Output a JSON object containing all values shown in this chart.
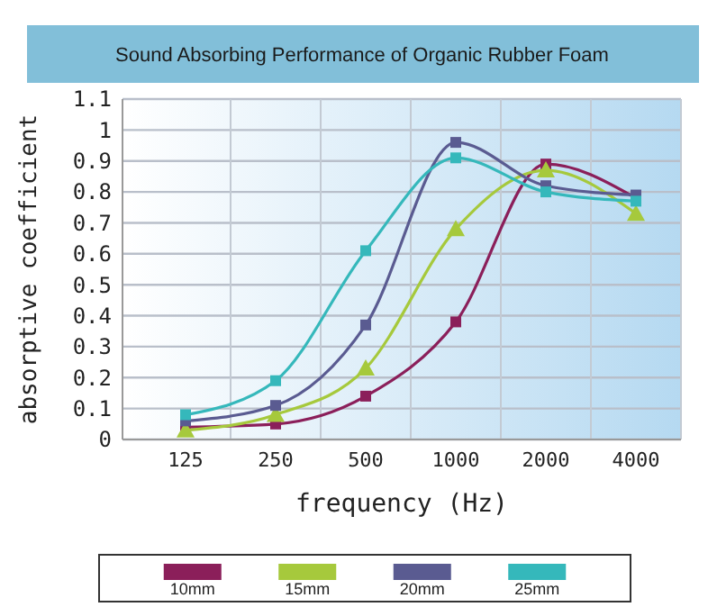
{
  "chart_data": {
    "type": "line",
    "title": "Sound Absorbing Performance of Organic Rubber Foam",
    "xlabel": "frequency (Hz)",
    "ylabel": "absorptive coefficient",
    "categories": [
      "125",
      "250",
      "500",
      "1000",
      "2000",
      "4000"
    ],
    "series": [
      {
        "name": "10mm",
        "color": "#8b1f5a",
        "marker": "square",
        "values": [
          0.04,
          0.05,
          0.14,
          0.38,
          0.89,
          0.78
        ]
      },
      {
        "name": "15mm",
        "color": "#a6c93c",
        "marker": "triangle",
        "values": [
          0.03,
          0.08,
          0.23,
          0.68,
          0.87,
          0.73
        ]
      },
      {
        "name": "20mm",
        "color": "#5a5b91",
        "marker": "square",
        "values": [
          0.06,
          0.11,
          0.37,
          0.96,
          0.82,
          0.79
        ]
      },
      {
        "name": "25mm",
        "color": "#35b8bb",
        "marker": "square",
        "values": [
          0.08,
          0.19,
          0.61,
          0.91,
          0.8,
          0.77
        ]
      }
    ],
    "ylim": [
      0,
      1.1
    ],
    "yticks": [
      0,
      0.1,
      0.2,
      0.3,
      0.4,
      0.5,
      0.6,
      0.7,
      0.8,
      0.9,
      1,
      1.1
    ],
    "grid": true,
    "legend": "bottom"
  }
}
